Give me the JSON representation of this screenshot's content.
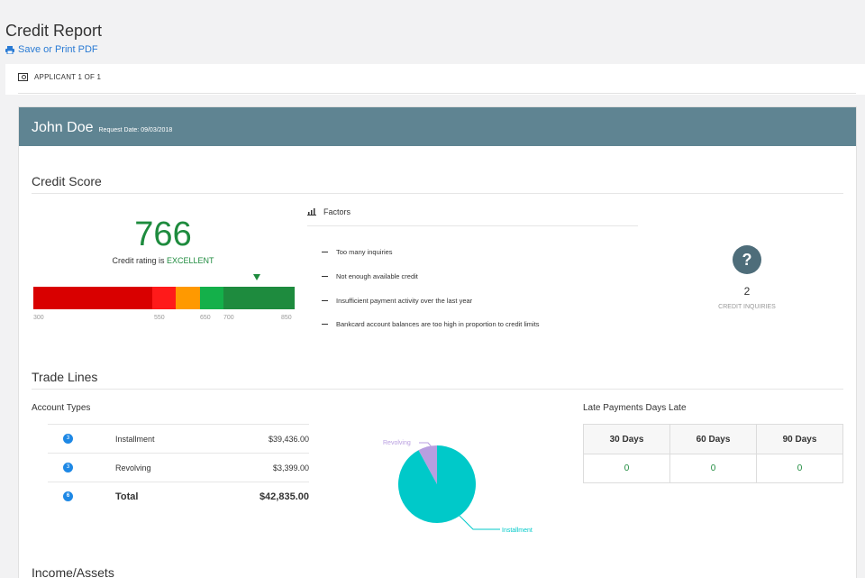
{
  "page": {
    "title": "Credit Report",
    "print_label": "Save or Print PDF"
  },
  "applicant": {
    "label": "APPLICANT 1 OF 1"
  },
  "header": {
    "name": "John Doe",
    "request_date": "Request Date: 09/03/2018"
  },
  "credit_score": {
    "title": "Credit Score",
    "score": "766",
    "rating_prefix": "Credit rating is ",
    "rating": "EXCELLENT",
    "ticks": [
      "300",
      "550",
      "650",
      "700",
      "850"
    ],
    "bands": [
      {
        "from": 300,
        "to": 550,
        "color": "#d90000"
      },
      {
        "from": 550,
        "to": 600,
        "color": "#ff1a1a"
      },
      {
        "from": 600,
        "to": 650,
        "color": "#ff9900"
      },
      {
        "from": 650,
        "to": 700,
        "color": "#14b04a"
      },
      {
        "from": 700,
        "to": 850,
        "color": "#1e8b3e"
      }
    ]
  },
  "factors": {
    "title": "Factors",
    "items": [
      "Too many inquiries",
      "Not enough available credit",
      "Insufficient payment activity over the last year",
      "Bankcard account balances are too high in proportion to credit limits"
    ]
  },
  "inquiries": {
    "count": "2",
    "label": "CREDIT INQUIRIES",
    "icon": "question-circle-icon"
  },
  "trade_lines": {
    "title": "Trade Lines",
    "account_types_title": "Account Types",
    "rows": [
      {
        "count": "3",
        "label": "Installment",
        "amount": "$39,436.00"
      },
      {
        "count": "3",
        "label": "Revolving",
        "amount": "$3,399.00"
      },
      {
        "count": "6",
        "label": "Total",
        "amount": "$42,835.00"
      }
    ],
    "chart_data": {
      "type": "pie",
      "labels": [
        "Installment",
        "Revolving"
      ],
      "values": [
        39436,
        3399
      ],
      "colors": [
        "#00c9c9",
        "#b89ee0"
      ]
    },
    "late_payments": {
      "title": "Late Payments Days Late",
      "headers": [
        "30 Days",
        "60 Days",
        "90 Days"
      ],
      "values": [
        "0",
        "0",
        "0"
      ]
    }
  },
  "income": {
    "title": "Income/Assets"
  }
}
